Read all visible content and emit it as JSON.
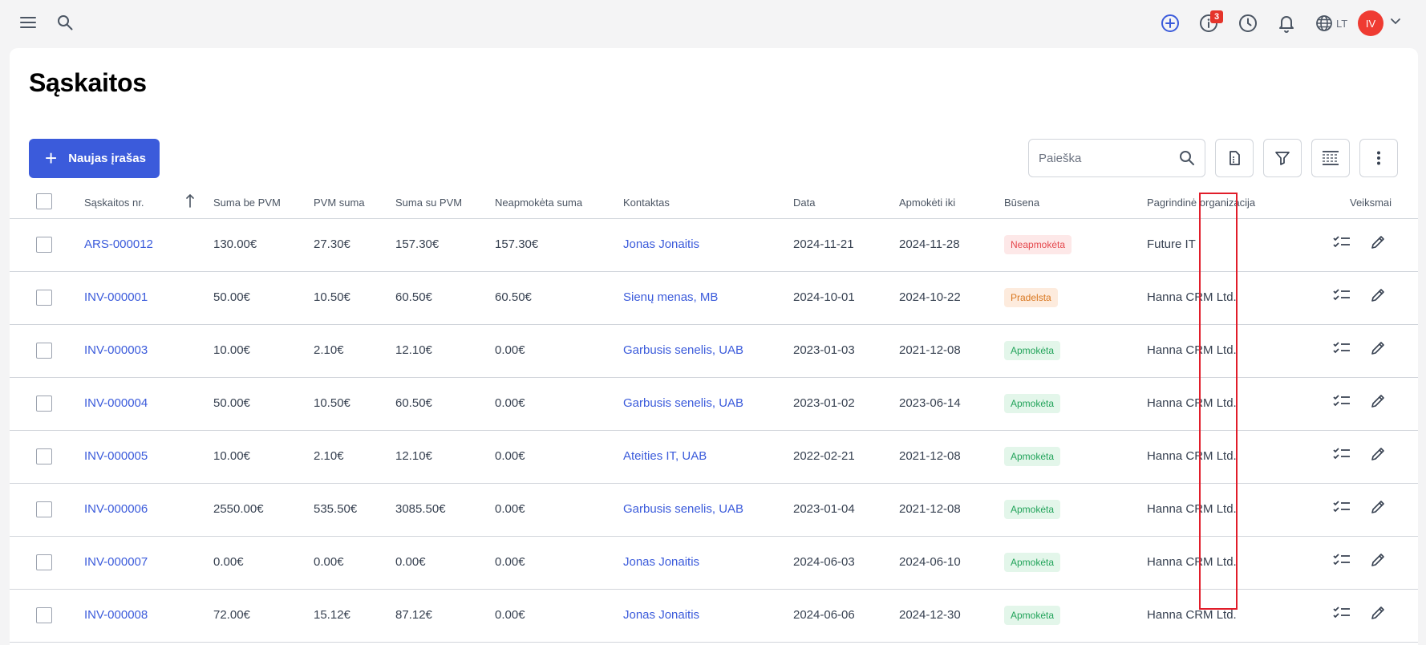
{
  "topbar": {
    "icons": [
      "menu-icon",
      "search-icon",
      "add-circle-icon",
      "info-icon",
      "clock-icon",
      "bell-icon",
      "globe-icon",
      "chevron-down-icon"
    ],
    "notifications_count": "3",
    "language": "LT",
    "user_initials": "IV",
    "colors": {
      "add": "#3b5bdb",
      "badge": "#e5342b",
      "avatar": "#ef3b32"
    }
  },
  "page": {
    "title": "Sąskaitos",
    "new_button": "Naujas įrašas",
    "search_placeholder": "Paieška",
    "toolbar_icons": [
      "export-icon",
      "filter-icon",
      "columns-icon",
      "more-vertical-icon"
    ],
    "accent_color": "#3b5bdb"
  },
  "table": {
    "columns": [
      "Sąskaitos nr.",
      "Suma be PVM",
      "PVM suma",
      "Suma su PVM",
      "Neapmokėta suma",
      "Kontaktas",
      "Data",
      "Apmokėti iki",
      "Būsena",
      "Pagrindinė organizacija",
      "Veiksmai"
    ],
    "sort_column": "Sąskaitos nr.",
    "sort_direction": "ascending",
    "status_styles": {
      "Neapmokėta": {
        "bg": "#fde8e8",
        "fg": "#e5484d"
      },
      "Pradelsta": {
        "bg": "#fdebdd",
        "fg": "#d9771f"
      },
      "Apmokėta": {
        "bg": "#e3f6ea",
        "fg": "#22a35a"
      }
    },
    "row_action_icons": [
      "checklist-icon",
      "edit-icon"
    ],
    "rows": [
      {
        "number": "ARS-000012",
        "net": "130.00€",
        "vat": "27.30€",
        "gross": "157.30€",
        "unpaid": "157.30€",
        "contact": "Jonas Jonaitis",
        "date": "2024-11-21",
        "due": "2024-11-28",
        "status": "Neapmokėta",
        "org": "Future IT"
      },
      {
        "number": "INV-000001",
        "net": "50.00€",
        "vat": "10.50€",
        "gross": "60.50€",
        "unpaid": "60.50€",
        "contact": "Sienų menas, MB",
        "date": "2024-10-01",
        "due": "2024-10-22",
        "status": "Pradelsta",
        "org": "Hanna CRM Ltd."
      },
      {
        "number": "INV-000003",
        "net": "10.00€",
        "vat": "2.10€",
        "gross": "12.10€",
        "unpaid": "0.00€",
        "contact": "Garbusis senelis, UAB",
        "date": "2023-01-03",
        "due": "2021-12-08",
        "status": "Apmokėta",
        "org": "Hanna CRM Ltd."
      },
      {
        "number": "INV-000004",
        "net": "50.00€",
        "vat": "10.50€",
        "gross": "60.50€",
        "unpaid": "0.00€",
        "contact": "Garbusis senelis, UAB",
        "date": "2023-01-02",
        "due": "2023-06-14",
        "status": "Apmokėta",
        "org": "Hanna CRM Ltd."
      },
      {
        "number": "INV-000005",
        "net": "10.00€",
        "vat": "2.10€",
        "gross": "12.10€",
        "unpaid": "0.00€",
        "contact": "Ateities IT, UAB",
        "date": "2022-02-21",
        "due": "2021-12-08",
        "status": "Apmokėta",
        "org": "Hanna CRM Ltd."
      },
      {
        "number": "INV-000006",
        "net": "2550.00€",
        "vat": "535.50€",
        "gross": "3085.50€",
        "unpaid": "0.00€",
        "contact": "Garbusis senelis, UAB",
        "date": "2023-01-04",
        "due": "2021-12-08",
        "status": "Apmokėta",
        "org": "Hanna CRM Ltd."
      },
      {
        "number": "INV-000007",
        "net": "0.00€",
        "vat": "0.00€",
        "gross": "0.00€",
        "unpaid": "0.00€",
        "contact": "Jonas Jonaitis",
        "date": "2024-06-03",
        "due": "2024-06-10",
        "status": "Apmokėta",
        "org": "Hanna CRM Ltd."
      },
      {
        "number": "INV-000008",
        "net": "72.00€",
        "vat": "15.12€",
        "gross": "87.12€",
        "unpaid": "0.00€",
        "contact": "Jonas Jonaitis",
        "date": "2024-06-06",
        "due": "2024-12-30",
        "status": "Apmokėta",
        "org": "Hanna CRM Ltd."
      }
    ]
  }
}
